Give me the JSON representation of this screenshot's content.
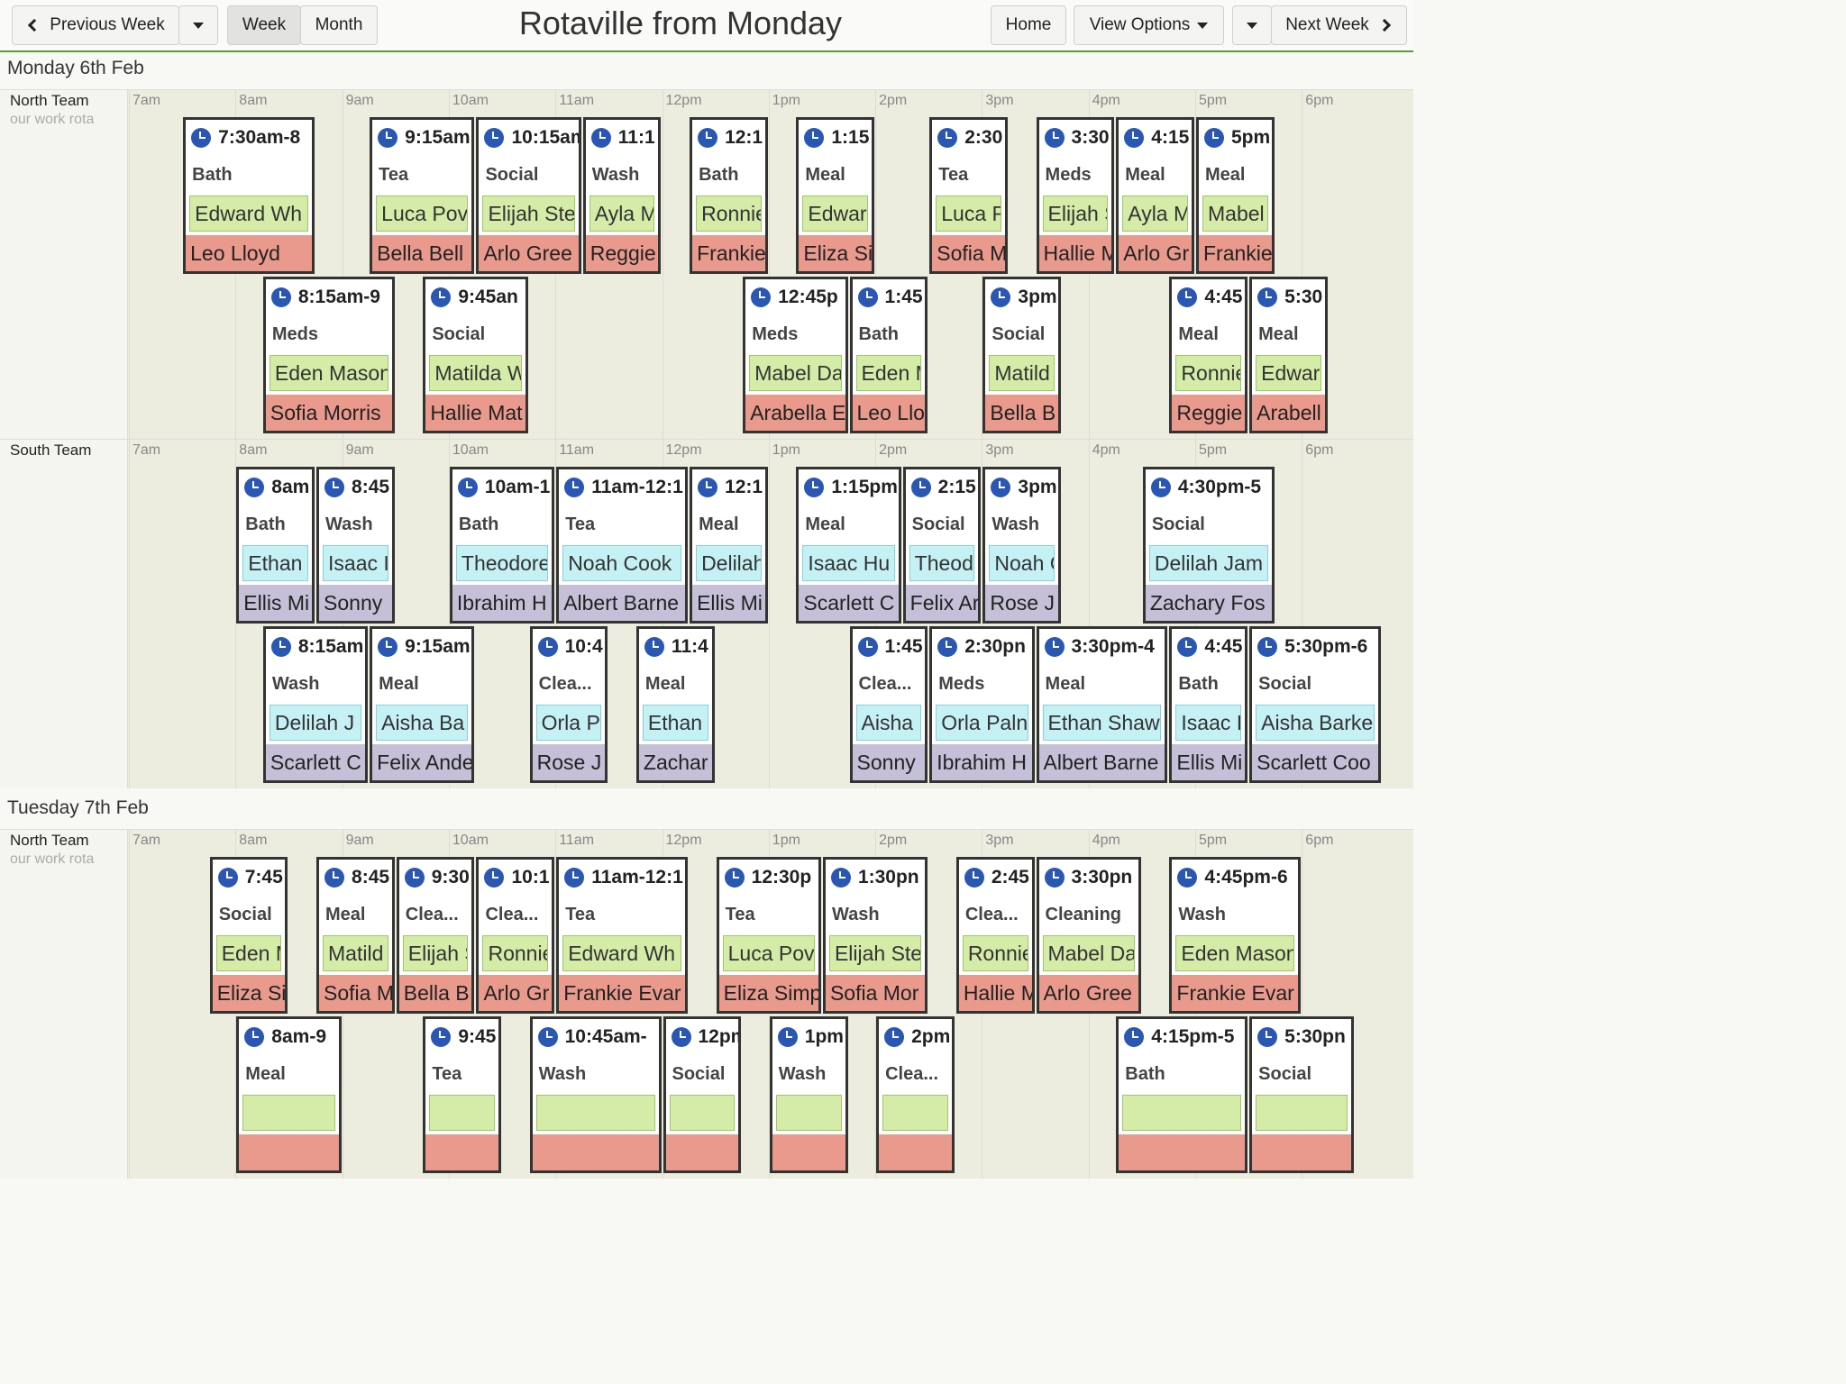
{
  "toolbar": {
    "prev_week": "Previous Week",
    "week": "Week",
    "month": "Month",
    "title": "Rotaville from Monday",
    "home": "Home",
    "view_options": "View Options",
    "next_week": "Next Week"
  },
  "hours": [
    "7am",
    "8am",
    "9am",
    "10am",
    "11am",
    "12pm",
    "1pm",
    "2pm",
    "3pm",
    "4pm",
    "5pm",
    "6pm"
  ],
  "days": [
    {
      "label": "Monday 6th Feb",
      "teams": [
        {
          "name": "North Team",
          "subtitle": "our work rota",
          "type": "north",
          "shifts": [
            {
              "time": "7:30am-8",
              "task": "Bath",
              "client": "Edward Wh",
              "staff": "Leo Lloyd",
              "row": 0,
              "start": 7.5,
              "end": 8.75
            },
            {
              "time": "9:15am",
              "task": "Tea",
              "client": "Luca Pov",
              "staff": "Bella Bell",
              "row": 0,
              "start": 9.25,
              "end": 10.25
            },
            {
              "time": "10:15am",
              "task": "Social",
              "client": "Elijah Ste",
              "staff": "Arlo Gree",
              "row": 0,
              "start": 10.25,
              "end": 11.25
            },
            {
              "time": "11:1",
              "task": "Wash",
              "client": "Ayla M",
              "staff": "Reggie",
              "row": 0,
              "start": 11.25,
              "end": 12
            },
            {
              "time": "12:1",
              "task": "Bath",
              "client": "Ronnie",
              "staff": "Frankie",
              "row": 0,
              "start": 12.25,
              "end": 13
            },
            {
              "time": "1:15",
              "task": "Meal",
              "client": "Edwar",
              "staff": "Eliza Si",
              "row": 0,
              "start": 13.25,
              "end": 14
            },
            {
              "time": "2:30",
              "task": "Tea",
              "client": "Luca F",
              "staff": "Sofia M",
              "row": 0,
              "start": 14.5,
              "end": 15.25
            },
            {
              "time": "3:30",
              "task": "Meds",
              "client": "Elijah S",
              "staff": "Hallie M",
              "row": 0,
              "start": 15.5,
              "end": 16.25
            },
            {
              "time": "4:15",
              "task": "Meal",
              "client": "Ayla M",
              "staff": "Arlo Gr",
              "row": 0,
              "start": 16.25,
              "end": 17
            },
            {
              "time": "5pm",
              "task": "Meal",
              "client": "Mabel",
              "staff": "Frankie",
              "row": 0,
              "start": 17,
              "end": 17.75
            },
            {
              "time": "8:15am-9",
              "task": "Meds",
              "client": "Eden Mason",
              "staff": "Sofia Morris",
              "row": 1,
              "start": 8.25,
              "end": 9.5
            },
            {
              "time": "9:45an",
              "task": "Social",
              "client": "Matilda W",
              "staff": "Hallie Mat",
              "row": 1,
              "start": 9.75,
              "end": 10.75
            },
            {
              "time": "12:45p",
              "task": "Meds",
              "client": "Mabel Da",
              "staff": "Arabella E",
              "row": 1,
              "start": 12.75,
              "end": 13.75
            },
            {
              "time": "1:45",
              "task": "Bath",
              "client": "Eden M",
              "staff": "Leo Llo",
              "row": 1,
              "start": 13.75,
              "end": 14.5
            },
            {
              "time": "3pm",
              "task": "Social",
              "client": "Matild",
              "staff": "Bella B",
              "row": 1,
              "start": 15,
              "end": 15.75
            },
            {
              "time": "4:45",
              "task": "Meal",
              "client": "Ronnie",
              "staff": "Reggie",
              "row": 1,
              "start": 16.75,
              "end": 17.5
            },
            {
              "time": "5:30",
              "task": "Meal",
              "client": "Edwar",
              "staff": "Arabell",
              "row": 1,
              "start": 17.5,
              "end": 18.25
            }
          ]
        },
        {
          "name": "South Team",
          "subtitle": "",
          "type": "south",
          "shifts": [
            {
              "time": "8am",
              "task": "Bath",
              "client": "Ethan",
              "staff": "Ellis Mi",
              "row": 0,
              "start": 8,
              "end": 8.75
            },
            {
              "time": "8:45",
              "task": "Wash",
              "client": "Isaac I",
              "staff": "Sonny",
              "row": 0,
              "start": 8.75,
              "end": 9.5
            },
            {
              "time": "10am-1",
              "task": "Bath",
              "client": "Theodore",
              "staff": "Ibrahim H",
              "row": 0,
              "start": 10,
              "end": 11
            },
            {
              "time": "11am-12:1",
              "task": "Tea",
              "client": "Noah Cook",
              "staff": "Albert Barne",
              "row": 0,
              "start": 11,
              "end": 12.25
            },
            {
              "time": "12:1",
              "task": "Meal",
              "client": "Delilah",
              "staff": "Ellis Mi",
              "row": 0,
              "start": 12.25,
              "end": 13
            },
            {
              "time": "1:15pm",
              "task": "Meal",
              "client": "Isaac Hu",
              "staff": "Scarlett C",
              "row": 0,
              "start": 13.25,
              "end": 14.25
            },
            {
              "time": "2:15",
              "task": "Social",
              "client": "Theod",
              "staff": "Felix Ar",
              "row": 0,
              "start": 14.25,
              "end": 15
            },
            {
              "time": "3pm",
              "task": "Wash",
              "client": "Noah C",
              "staff": "Rose J",
              "row": 0,
              "start": 15,
              "end": 15.75
            },
            {
              "time": "4:30pm-5",
              "task": "Social",
              "client": "Delilah Jam",
              "staff": "Zachary Fos",
              "row": 0,
              "start": 16.5,
              "end": 17.75
            },
            {
              "time": "8:15am",
              "task": "Wash",
              "client": "Delilah J",
              "staff": "Scarlett C",
              "row": 1,
              "start": 8.25,
              "end": 9.25
            },
            {
              "time": "9:15am",
              "task": "Meal",
              "client": "Aisha Ba",
              "staff": "Felix Ande",
              "row": 1,
              "start": 9.25,
              "end": 10.25
            },
            {
              "time": "10:4",
              "task": "Clea...",
              "client": "Orla P",
              "staff": "Rose J",
              "row": 1,
              "start": 10.75,
              "end": 11.5
            },
            {
              "time": "11:4",
              "task": "Meal",
              "client": "Ethan",
              "staff": "Zachar",
              "row": 1,
              "start": 11.75,
              "end": 12.5
            },
            {
              "time": "1:45",
              "task": "Clea...",
              "client": "Aisha",
              "staff": "Sonny",
              "row": 1,
              "start": 13.75,
              "end": 14.5
            },
            {
              "time": "2:30pn",
              "task": "Meds",
              "client": "Orla Paln",
              "staff": "Ibrahim H",
              "row": 1,
              "start": 14.5,
              "end": 15.5
            },
            {
              "time": "3:30pm-4",
              "task": "Meal",
              "client": "Ethan Shaw",
              "staff": "Albert Barne",
              "row": 1,
              "start": 15.5,
              "end": 16.75
            },
            {
              "time": "4:45",
              "task": "Bath",
              "client": "Isaac I",
              "staff": "Ellis Mi",
              "row": 1,
              "start": 16.75,
              "end": 17.5
            },
            {
              "time": "5:30pm-6",
              "task": "Social",
              "client": "Aisha Barke",
              "staff": "Scarlett Coo",
              "row": 1,
              "start": 17.5,
              "end": 18.75
            }
          ]
        }
      ]
    },
    {
      "label": "Tuesday 7th Feb",
      "teams": [
        {
          "name": "North Team",
          "subtitle": "our work rota",
          "type": "north",
          "shifts": [
            {
              "time": "7:45",
              "task": "Social",
              "client": "Eden M",
              "staff": "Eliza Si",
              "row": 0,
              "start": 7.75,
              "end": 8.5
            },
            {
              "time": "8:45",
              "task": "Meal",
              "client": "Matild",
              "staff": "Sofia M",
              "row": 0,
              "start": 8.75,
              "end": 9.5
            },
            {
              "time": "9:30",
              "task": "Clea...",
              "client": "Elijah S",
              "staff": "Bella B",
              "row": 0,
              "start": 9.5,
              "end": 10.25
            },
            {
              "time": "10:1",
              "task": "Clea...",
              "client": "Ronnie",
              "staff": "Arlo Gr",
              "row": 0,
              "start": 10.25,
              "end": 11
            },
            {
              "time": "11am-12:1",
              "task": "Tea",
              "client": "Edward Wh",
              "staff": "Frankie Evar",
              "row": 0,
              "start": 11,
              "end": 12.25
            },
            {
              "time": "12:30p",
              "task": "Tea",
              "client": "Luca Pov",
              "staff": "Eliza Simp",
              "row": 0,
              "start": 12.5,
              "end": 13.5
            },
            {
              "time": "1:30pn",
              "task": "Wash",
              "client": "Elijah Ste",
              "staff": "Sofia Mor",
              "row": 0,
              "start": 13.5,
              "end": 14.5
            },
            {
              "time": "2:45",
              "task": "Clea...",
              "client": "Ronnie",
              "staff": "Hallie M",
              "row": 0,
              "start": 14.75,
              "end": 15.5
            },
            {
              "time": "3:30pn",
              "task": "Cleaning",
              "client": "Mabel Da",
              "staff": "Arlo Gree",
              "row": 0,
              "start": 15.5,
              "end": 16.5
            },
            {
              "time": "4:45pm-6",
              "task": "Wash",
              "client": "Eden Mason",
              "staff": "Frankie Evar",
              "row": 0,
              "start": 16.75,
              "end": 18
            },
            {
              "time": "8am-9",
              "task": "Meal",
              "client": "",
              "staff": "",
              "row": 1,
              "start": 8,
              "end": 9
            },
            {
              "time": "9:45",
              "task": "Tea",
              "client": "",
              "staff": "",
              "row": 1,
              "start": 9.75,
              "end": 10.5
            },
            {
              "time": "10:45am-",
              "task": "Wash",
              "client": "",
              "staff": "",
              "row": 1,
              "start": 10.75,
              "end": 12
            },
            {
              "time": "12pm",
              "task": "Social",
              "client": "",
              "staff": "",
              "row": 1,
              "start": 12,
              "end": 12.75
            },
            {
              "time": "1pm",
              "task": "Wash",
              "client": "",
              "staff": "",
              "row": 1,
              "start": 13,
              "end": 13.75
            },
            {
              "time": "2pm",
              "task": "Clea...",
              "client": "",
              "staff": "",
              "row": 1,
              "start": 14,
              "end": 14.75
            },
            {
              "time": "4:15pm-5",
              "task": "Bath",
              "client": "",
              "staff": "",
              "row": 1,
              "start": 16.25,
              "end": 17.5
            },
            {
              "time": "5:30pn",
              "task": "Social",
              "client": "",
              "staff": "",
              "row": 1,
              "start": 17.5,
              "end": 18.5
            }
          ]
        }
      ]
    }
  ]
}
